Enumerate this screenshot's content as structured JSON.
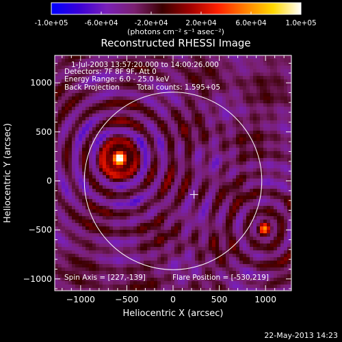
{
  "colorbar": {
    "ticks": [
      "-1.0e+05",
      "-6.0e+04",
      "-2.0e+04",
      "2.0e+04",
      "6.0e+04",
      "1.0e+05"
    ],
    "range": [
      -100000,
      100000
    ],
    "label": "(photons cm⁻² s⁻¹ asec⁻²)",
    "colormap": [
      "#0000ff",
      "#3a00d8",
      "#7a20b8",
      "#7a2070",
      "#3a0000",
      "#a00000",
      "#ff2000",
      "#ff8000",
      "#ffd800",
      "#ffffff"
    ]
  },
  "chart_data": {
    "type": "heatmap",
    "title": "Reconstructed RHESSI Image",
    "xlabel": "Heliocentric X (arcsec)",
    "ylabel": "Heliocentric Y (arcsec)",
    "xlim": [
      -1280,
      1280
    ],
    "ylim": [
      -1120,
      1280
    ],
    "xticks": [
      -1000,
      -500,
      0,
      500,
      1000
    ],
    "yticks": [
      -1000,
      -500,
      0,
      500,
      1000
    ],
    "xtick_labels": [
      "−1000",
      "−500",
      "0",
      "500",
      "1000"
    ],
    "ytick_labels": [
      "−1000",
      "−500",
      "0",
      "500",
      "1000"
    ],
    "solar_limb_radius": 960,
    "limb_color": "#ffffff",
    "center_marker": {
      "x": 227,
      "y": -139
    },
    "sources": [
      {
        "x": -580,
        "y": 230,
        "intensity": 100000
      },
      {
        "x": 990,
        "y": -490,
        "intensity": 75000
      }
    ],
    "annotations": {
      "time": "1-Jul-2003 13:57:20.000 to 14:00:26.000",
      "detectors": "Detectors: 7F 8F 9F, Att 0",
      "energy": "Energy Range: 6.0 - 25.0 keV",
      "method": "Back Projection",
      "counts": "Total counts: 1.595+05",
      "spin_axis": "Spin Axis = [227,-139]",
      "flare_position": "Flare Position = [-530,219]"
    }
  },
  "footer": {
    "date": "22-May-2013 14:23"
  }
}
